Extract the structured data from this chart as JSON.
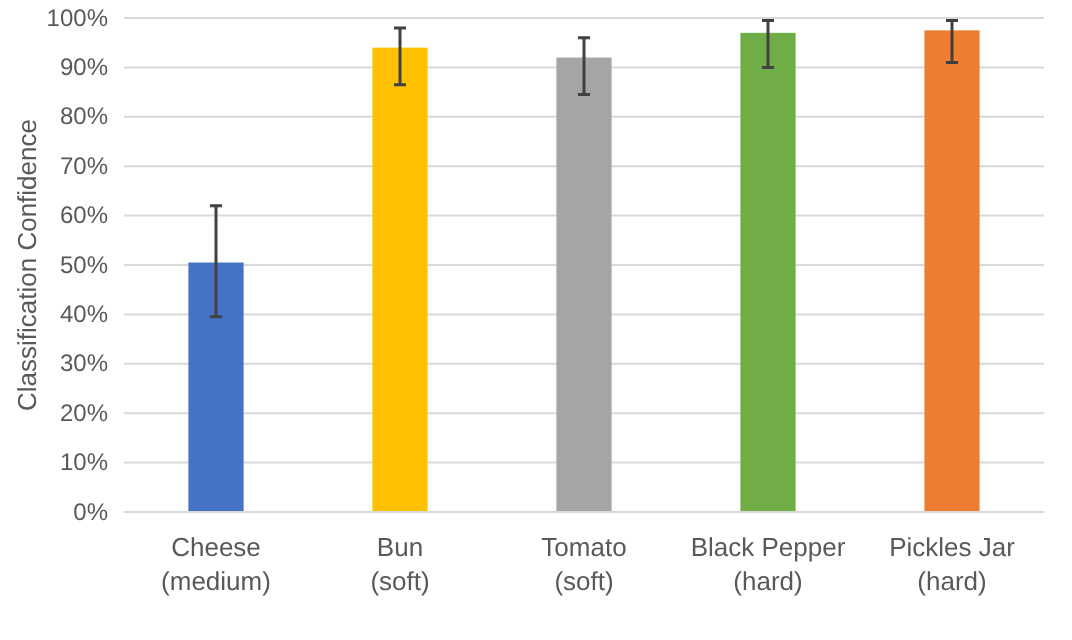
{
  "chart_data": {
    "type": "bar",
    "ylabel": "Classification Confidence",
    "categories": [
      "Cheese\n(medium)",
      "Bun\n(soft)",
      "Tomato\n(soft)",
      "Black Pepper\n(hard)",
      "Pickles Jar\n(hard)"
    ],
    "values": [
      50.5,
      94,
      92,
      97,
      97.5
    ],
    "colors": [
      "#4472c4",
      "#ffc000",
      "#a5a5a5",
      "#70ad47",
      "#ed7d31"
    ],
    "errors": [
      [
        39.5,
        62
      ],
      [
        86.5,
        98
      ],
      [
        84.5,
        96
      ],
      [
        90,
        99.5
      ],
      [
        91,
        99.5
      ]
    ],
    "ylim": [
      0,
      100
    ],
    "yticks": [
      {
        "value": 0,
        "label": "0%"
      },
      {
        "value": 10,
        "label": "10%"
      },
      {
        "value": 20,
        "label": "20%"
      },
      {
        "value": 30,
        "label": "30%"
      },
      {
        "value": 40,
        "label": "40%"
      },
      {
        "value": 50,
        "label": "50%"
      },
      {
        "value": 60,
        "label": "60%"
      },
      {
        "value": 70,
        "label": "70%"
      },
      {
        "value": 80,
        "label": "80%"
      },
      {
        "value": 90,
        "label": "90%"
      },
      {
        "value": 100,
        "label": "100%"
      }
    ],
    "grid": "y"
  }
}
